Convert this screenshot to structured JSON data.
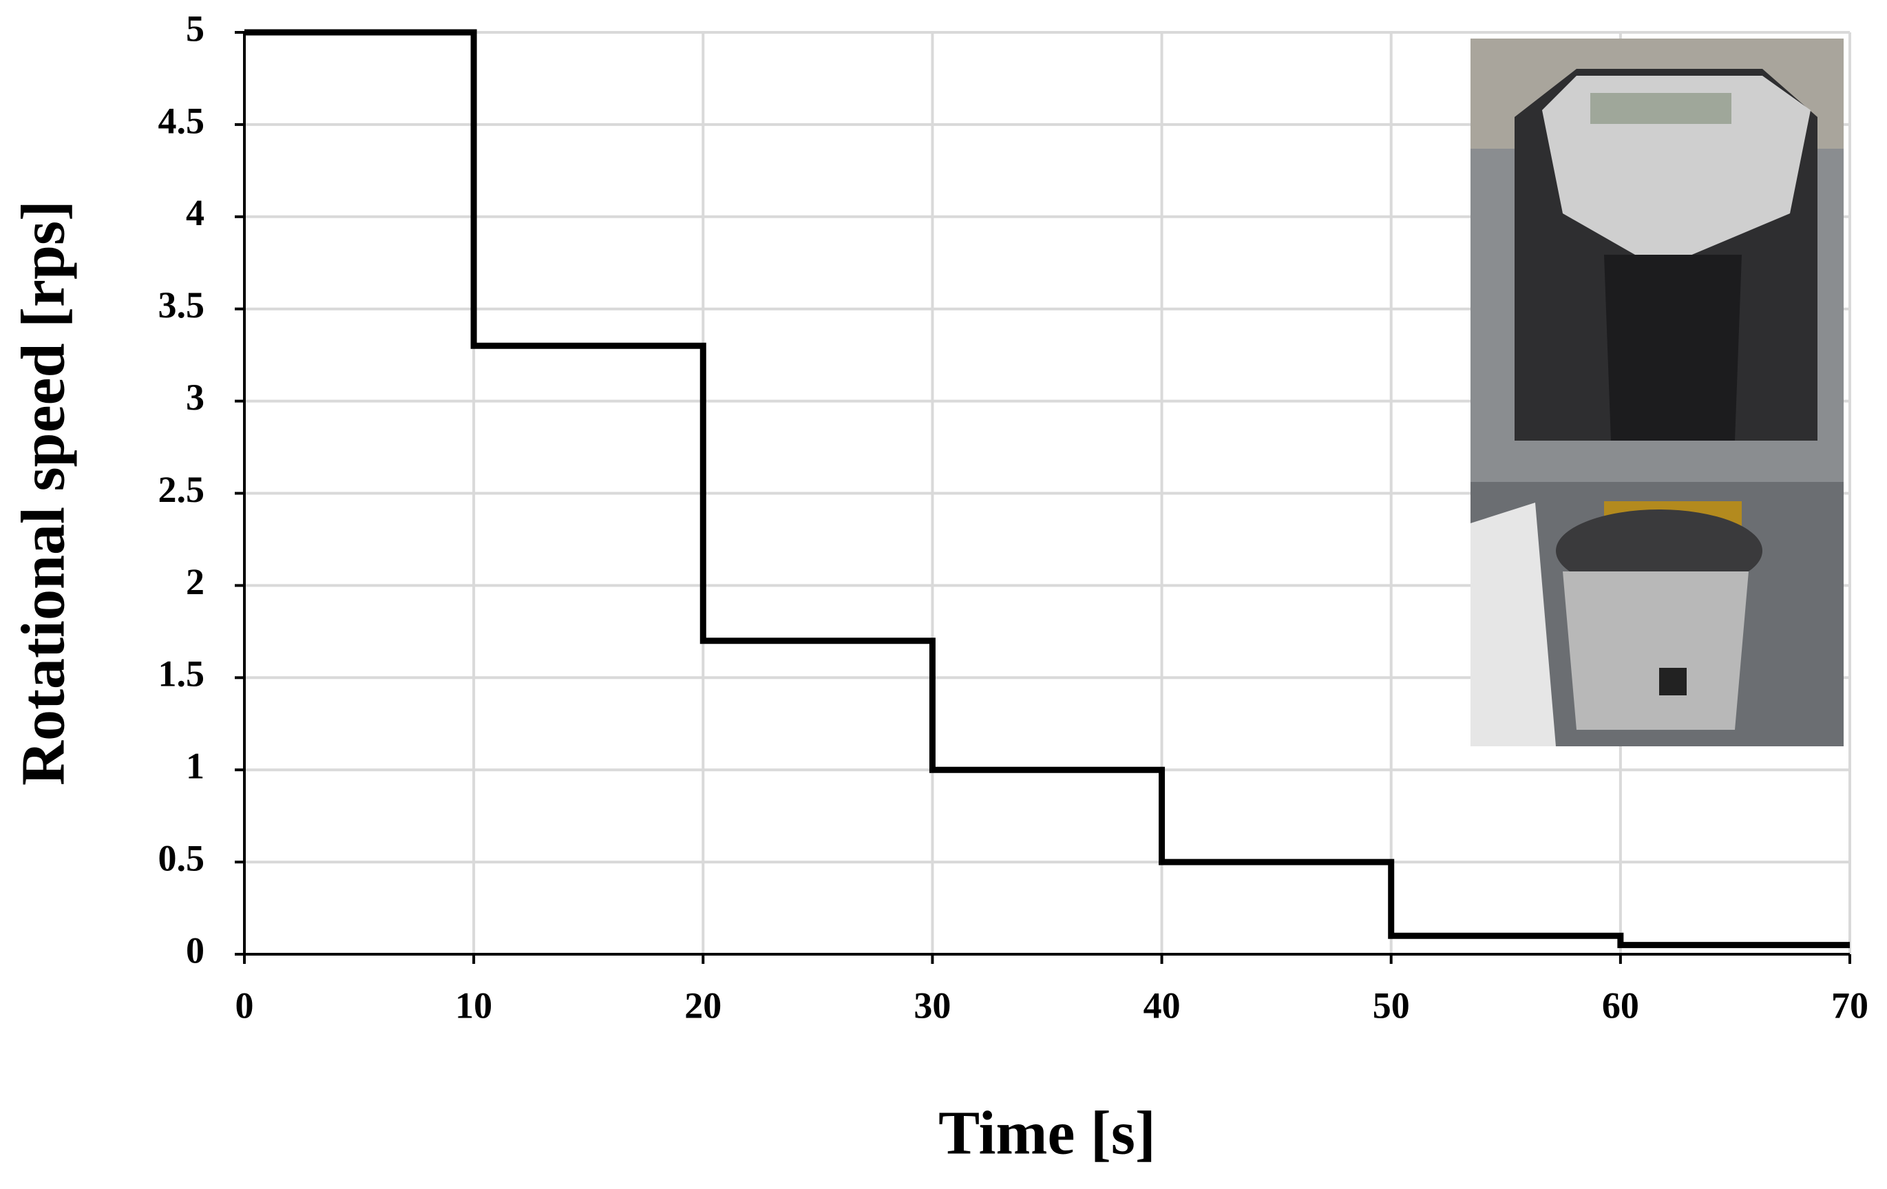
{
  "chart_data": {
    "type": "line",
    "x_label": "Time [s]",
    "y_label": "Rotational speed [rps]",
    "series": [
      {
        "name": "Rotational speed",
        "color": "#000000",
        "x": [
          0,
          10,
          10,
          20,
          20,
          30,
          30,
          40,
          40,
          50,
          50,
          60,
          60,
          70
        ],
        "values": [
          5,
          5,
          3.3,
          3.3,
          1.7,
          1.7,
          1,
          1,
          0.5,
          0.5,
          0.1,
          0.1,
          0.05,
          0.05
        ]
      }
    ],
    "xlim": [
      0,
      70
    ],
    "xticks": [
      0,
      10,
      20,
      30,
      40,
      50,
      60,
      70
    ],
    "ylim": [
      0,
      5
    ],
    "yticks": [
      0,
      0.5,
      1,
      1.5,
      2,
      2.5,
      3,
      3.5,
      4,
      4.5,
      5
    ],
    "grid": true
  }
}
